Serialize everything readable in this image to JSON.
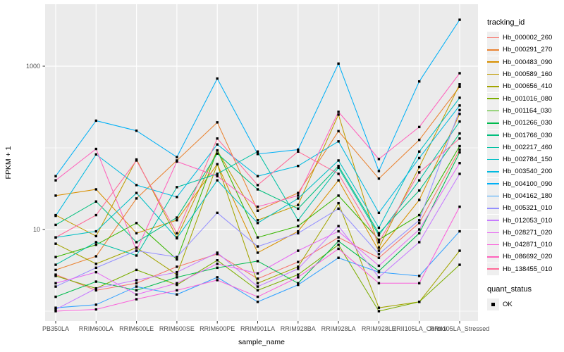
{
  "figure": {
    "background": "#FFFFFF",
    "panel_color": "#EBEBEB",
    "grid_color": "#FFFFFF",
    "tick_text_color": "#4D4D4D",
    "axis_title_color": "#000000",
    "point_color": "#000000"
  },
  "chart_data": {
    "type": "line",
    "title": "",
    "xlabel": "sample_name",
    "ylabel": "FPKM + 1",
    "y_scale": "log10",
    "y_tick_values": [
      10,
      1000
    ],
    "y_minor_gridlines": [
      1,
      100
    ],
    "ylim": [
      0.7,
      6000
    ],
    "grid": true,
    "legend_position": "right",
    "point_shape": "square",
    "point_color": "#000000",
    "categories": [
      "PB350LA",
      "RRIM600LA",
      "RRIM600LE",
      "RRIM600SE",
      "RRIM600PE",
      "RRIM901LA",
      "RRIM928BA",
      "RRIM928LA",
      "RRIM928LE",
      "RRII105LA_Control",
      "RRII105LA_Stressed"
    ],
    "series": [
      {
        "name": "Hb_000002_260",
        "color": "#F8766D",
        "values": [
          2.8,
          1.8,
          2.2,
          3.5,
          5.0,
          2.5,
          4.0,
          8.0,
          4.5,
          12,
          95
        ]
      },
      {
        "name": "Hb_000291_270",
        "color": "#EA8331",
        "values": [
          3.2,
          4.7,
          24,
          70,
          205,
          17,
          28,
          160,
          42,
          125,
          560
        ]
      },
      {
        "name": "Hb_000483_090",
        "color": "#D89000",
        "values": [
          26,
          31,
          9,
          13,
          63,
          5.2,
          9.5,
          40,
          5.5,
          23,
          260
        ]
      },
      {
        "name": "Hb_000589_160",
        "color": "#C09B00",
        "values": [
          15,
          8.3,
          72,
          8.0,
          93,
          13,
          20,
          255,
          6.0,
          58,
          600
        ]
      },
      {
        "name": "Hb_000656_410",
        "color": "#A3A500",
        "values": [
          6.7,
          3.8,
          6.0,
          2.8,
          63,
          2.2,
          3.5,
          21,
          1.1,
          1.3,
          5.5
        ]
      },
      {
        "name": "Hb_001016_080",
        "color": "#7CAE00",
        "values": [
          2.7,
          1.9,
          3.2,
          2.1,
          4.2,
          1.8,
          2.8,
          6.5,
          1.0,
          1.3,
          3.7
        ]
      },
      {
        "name": "Hb_001164_030",
        "color": "#39B600",
        "values": [
          4.6,
          6.5,
          12,
          4.3,
          93,
          8.0,
          11,
          26,
          7.5,
          15,
          105
        ]
      },
      {
        "name": "Hb_001266_030",
        "color": "#00BB4E",
        "values": [
          1.5,
          2.3,
          1.8,
          2.6,
          3.4,
          4.1,
          2.2,
          7.2,
          3.1,
          9.0,
          88
        ]
      },
      {
        "name": "Hb_001766_030",
        "color": "#00BF7D",
        "values": [
          11.4,
          22,
          7.0,
          14,
          85,
          31,
          18,
          60,
          9.0,
          30,
          150
        ]
      },
      {
        "name": "Hb_002217_460",
        "color": "#00C1A3",
        "values": [
          3.7,
          7.0,
          4.8,
          33,
          48,
          90,
          13,
          57,
          8.5,
          40,
          210
        ]
      },
      {
        "name": "Hb_002784_150",
        "color": "#00BFC4",
        "values": [
          8.0,
          9.5,
          28,
          7.8,
          40,
          12,
          24,
          70,
          10.5,
          90,
          410
        ]
      },
      {
        "name": "Hb_003540_200",
        "color": "#00BAE0",
        "values": [
          14.7,
          83,
          35,
          25,
          110,
          45,
          60,
          120,
          16,
          75,
          330
        ]
      },
      {
        "name": "Hb_004100_090",
        "color": "#00B0F6",
        "values": [
          45,
          215,
          162,
          77,
          705,
          84,
          95,
          1075,
          52,
          650,
          3700
        ]
      },
      {
        "name": "Hb_004162_180",
        "color": "#35A2FF",
        "values": [
          1.1,
          1.2,
          2.0,
          1.6,
          2.6,
          1.3,
          2.1,
          4.5,
          3.0,
          2.7,
          9.5
        ]
      },
      {
        "name": "Hb_005321_010",
        "color": "#9590FF",
        "values": [
          2.0,
          3.4,
          5.5,
          4.6,
          16,
          6.2,
          9.0,
          18,
          5.0,
          13,
          290
        ]
      },
      {
        "name": "Hb_012053_010",
        "color": "#C77CFF",
        "values": [
          1.05,
          1.9,
          2.4,
          3.0,
          5.2,
          2.0,
          3.3,
          11,
          2.6,
          7.0,
          48
        ]
      },
      {
        "name": "Hb_028271_020",
        "color": "#E76BF3",
        "values": [
          2.2,
          3.0,
          1.6,
          2.2,
          3.8,
          2.9,
          5.5,
          9.5,
          3.6,
          10,
          65
        ]
      },
      {
        "name": "Hb_042871_010",
        "color": "#FA62DB",
        "values": [
          1.0,
          1.05,
          1.4,
          1.8,
          2.4,
          1.5,
          2.6,
          5.8,
          2.2,
          2.2,
          19
        ]
      },
      {
        "name": "Hb_086692_020",
        "color": "#FF62BC",
        "values": [
          40,
          97,
          5.5,
          68,
          45,
          19,
          26,
          276,
          73,
          180,
          820
        ]
      },
      {
        "name": "Hb_138455_010",
        "color": "#FF6A98",
        "values": [
          8.0,
          15,
          70,
          9.0,
          130,
          35,
          90,
          48,
          7.0,
          50,
          130
        ]
      }
    ],
    "legend": {
      "tracking_title": "tracking_id",
      "quant_title": "quant_status",
      "quant_items": [
        {
          "label": "OK",
          "marker": "black-square"
        }
      ]
    }
  }
}
